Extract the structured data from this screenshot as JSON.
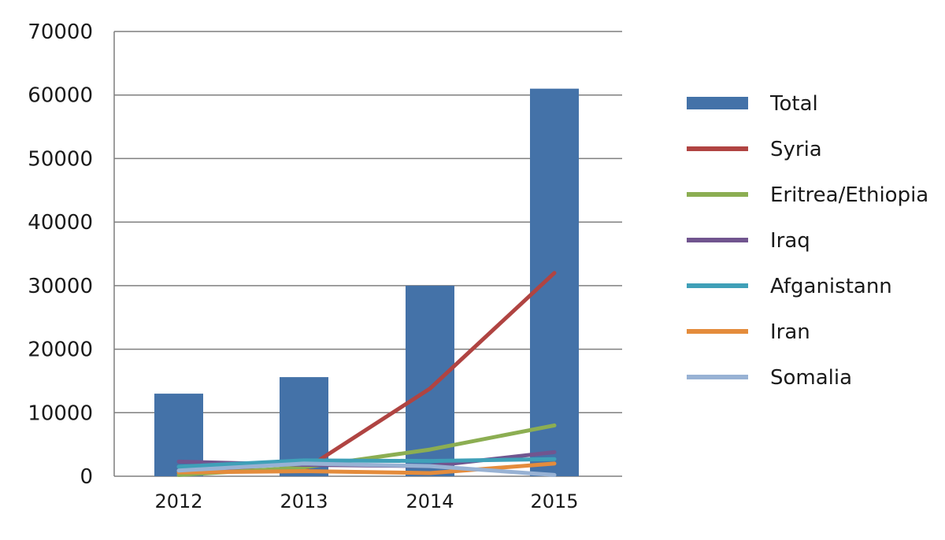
{
  "chart_data": {
    "type": "bar",
    "categories": [
      "2012",
      "2013",
      "2014",
      "2015"
    ],
    "ylim": [
      0,
      70000
    ],
    "yticks": [
      0,
      10000,
      20000,
      30000,
      40000,
      50000,
      60000,
      70000
    ],
    "grid": true,
    "legend_position": "right",
    "bar_series": {
      "name": "Total",
      "color": "#4472a8",
      "values": [
        13000,
        15600,
        30000,
        61000
      ]
    },
    "line_series": [
      {
        "name": "Syria",
        "color": "#b04442",
        "values": [
          900,
          1000,
          13800,
          32000
        ]
      },
      {
        "name": "Eritrea/Ethiopia",
        "color": "#8cae52",
        "values": [
          200,
          1400,
          4200,
          8000
        ]
      },
      {
        "name": "Iraq",
        "color": "#71558f",
        "values": [
          2300,
          1800,
          1600,
          3800
        ]
      },
      {
        "name": "Afganistann",
        "color": "#3fa0b8",
        "values": [
          1500,
          2500,
          2400,
          2700
        ]
      },
      {
        "name": "Iran",
        "color": "#e48c3c",
        "values": [
          600,
          800,
          500,
          2000
        ]
      },
      {
        "name": "Somalia",
        "color": "#98b2d4",
        "values": [
          900,
          2000,
          1600,
          200
        ]
      }
    ]
  }
}
